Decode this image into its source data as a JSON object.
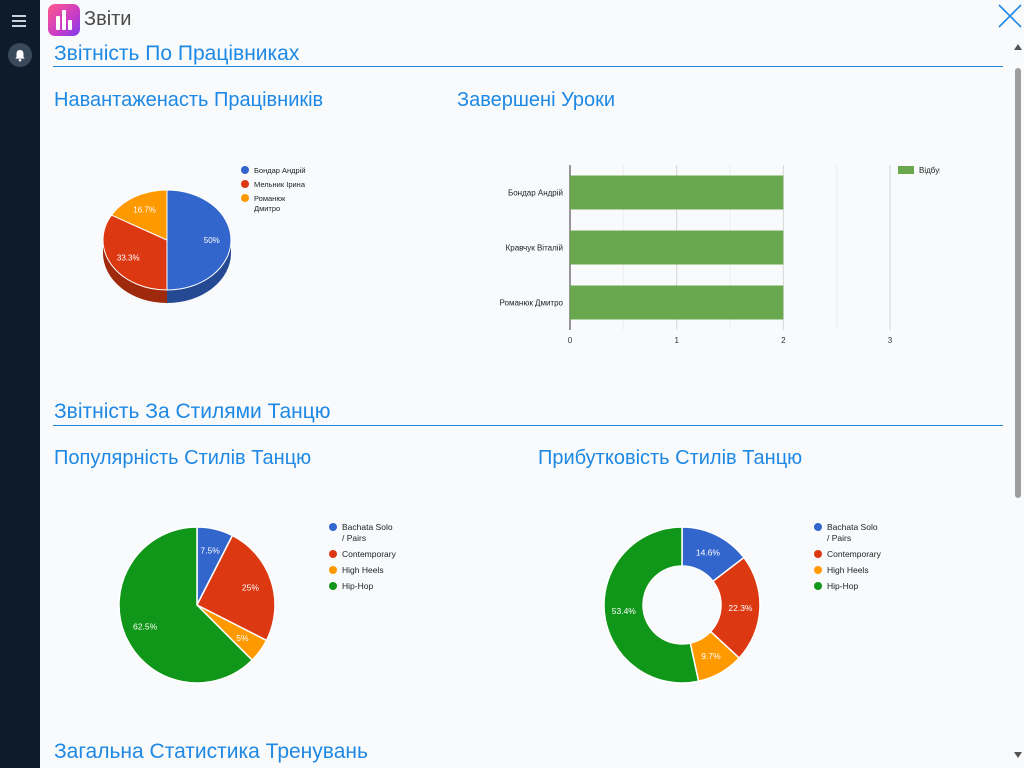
{
  "window": {
    "title": "Звіти"
  },
  "sections": [
    {
      "title": "Звітність По Працівниках"
    },
    {
      "title": "Звітність За Стилями Танцю"
    },
    {
      "title": "Загальна Статистика Тренувань"
    }
  ],
  "charts": {
    "workload": {
      "title": "Навантаженасть Працівників"
    },
    "completed": {
      "title": "Завершені Уроки"
    },
    "popularity": {
      "title": "Популярність Стилів Танцю"
    },
    "profitability": {
      "title": "Прибутковість Стилів Танцю"
    }
  },
  "chart_data": [
    {
      "type": "pie",
      "title": "Навантаженасть Працівників",
      "style": "3d",
      "slices": [
        {
          "label": "Бондар Андрій",
          "value": 50,
          "display": "50%",
          "color": "#3366cc"
        },
        {
          "label": "Мельник Ірина",
          "value": 33.3,
          "display": "33.3%",
          "color": "#dc3912"
        },
        {
          "label": "Романюк Дмитро",
          "value": 16.7,
          "display": "16.7%",
          "color": "#ff9900"
        }
      ]
    },
    {
      "type": "bar",
      "orientation": "horizontal",
      "title": "Завершені Уроки",
      "categories": [
        "Бондар Андрій",
        "Кравчук Віталій",
        "Романюк Дмитро"
      ],
      "series": [
        {
          "name": "Відбувся",
          "values": [
            2,
            2,
            2
          ],
          "color": "#6aa84f"
        }
      ],
      "xlim": [
        0,
        3
      ],
      "xticks": [
        "0",
        "1",
        "2",
        "3"
      ],
      "legend": "right"
    },
    {
      "type": "pie",
      "title": "Популярність Стилів Танцю",
      "slices": [
        {
          "label": "Bachata Solo / Pairs",
          "value": 7.5,
          "display": "7.5%",
          "color": "#3366cc"
        },
        {
          "label": "Contemporary",
          "value": 25,
          "display": "25%",
          "color": "#dc3912"
        },
        {
          "label": "High Heels",
          "value": 5,
          "display": "5%",
          "color": "#ff9900"
        },
        {
          "label": "Hip-Hop",
          "value": 62.5,
          "display": "62.5%",
          "color": "#109618"
        }
      ]
    },
    {
      "type": "pie",
      "style": "donut",
      "title": "Прибутковість Стилів Танцю",
      "slices": [
        {
          "label": "Bachata Solo / Pairs",
          "value": 14.6,
          "display": "14.6%",
          "color": "#3366cc"
        },
        {
          "label": "Contemporary",
          "value": 22.3,
          "display": "22.3%",
          "color": "#dc3912"
        },
        {
          "label": "High Heels",
          "value": 9.7,
          "display": "9.7%",
          "color": "#ff9900"
        },
        {
          "label": "Hip-Hop",
          "value": 53.4,
          "display": "53.4%",
          "color": "#109618"
        }
      ]
    }
  ]
}
